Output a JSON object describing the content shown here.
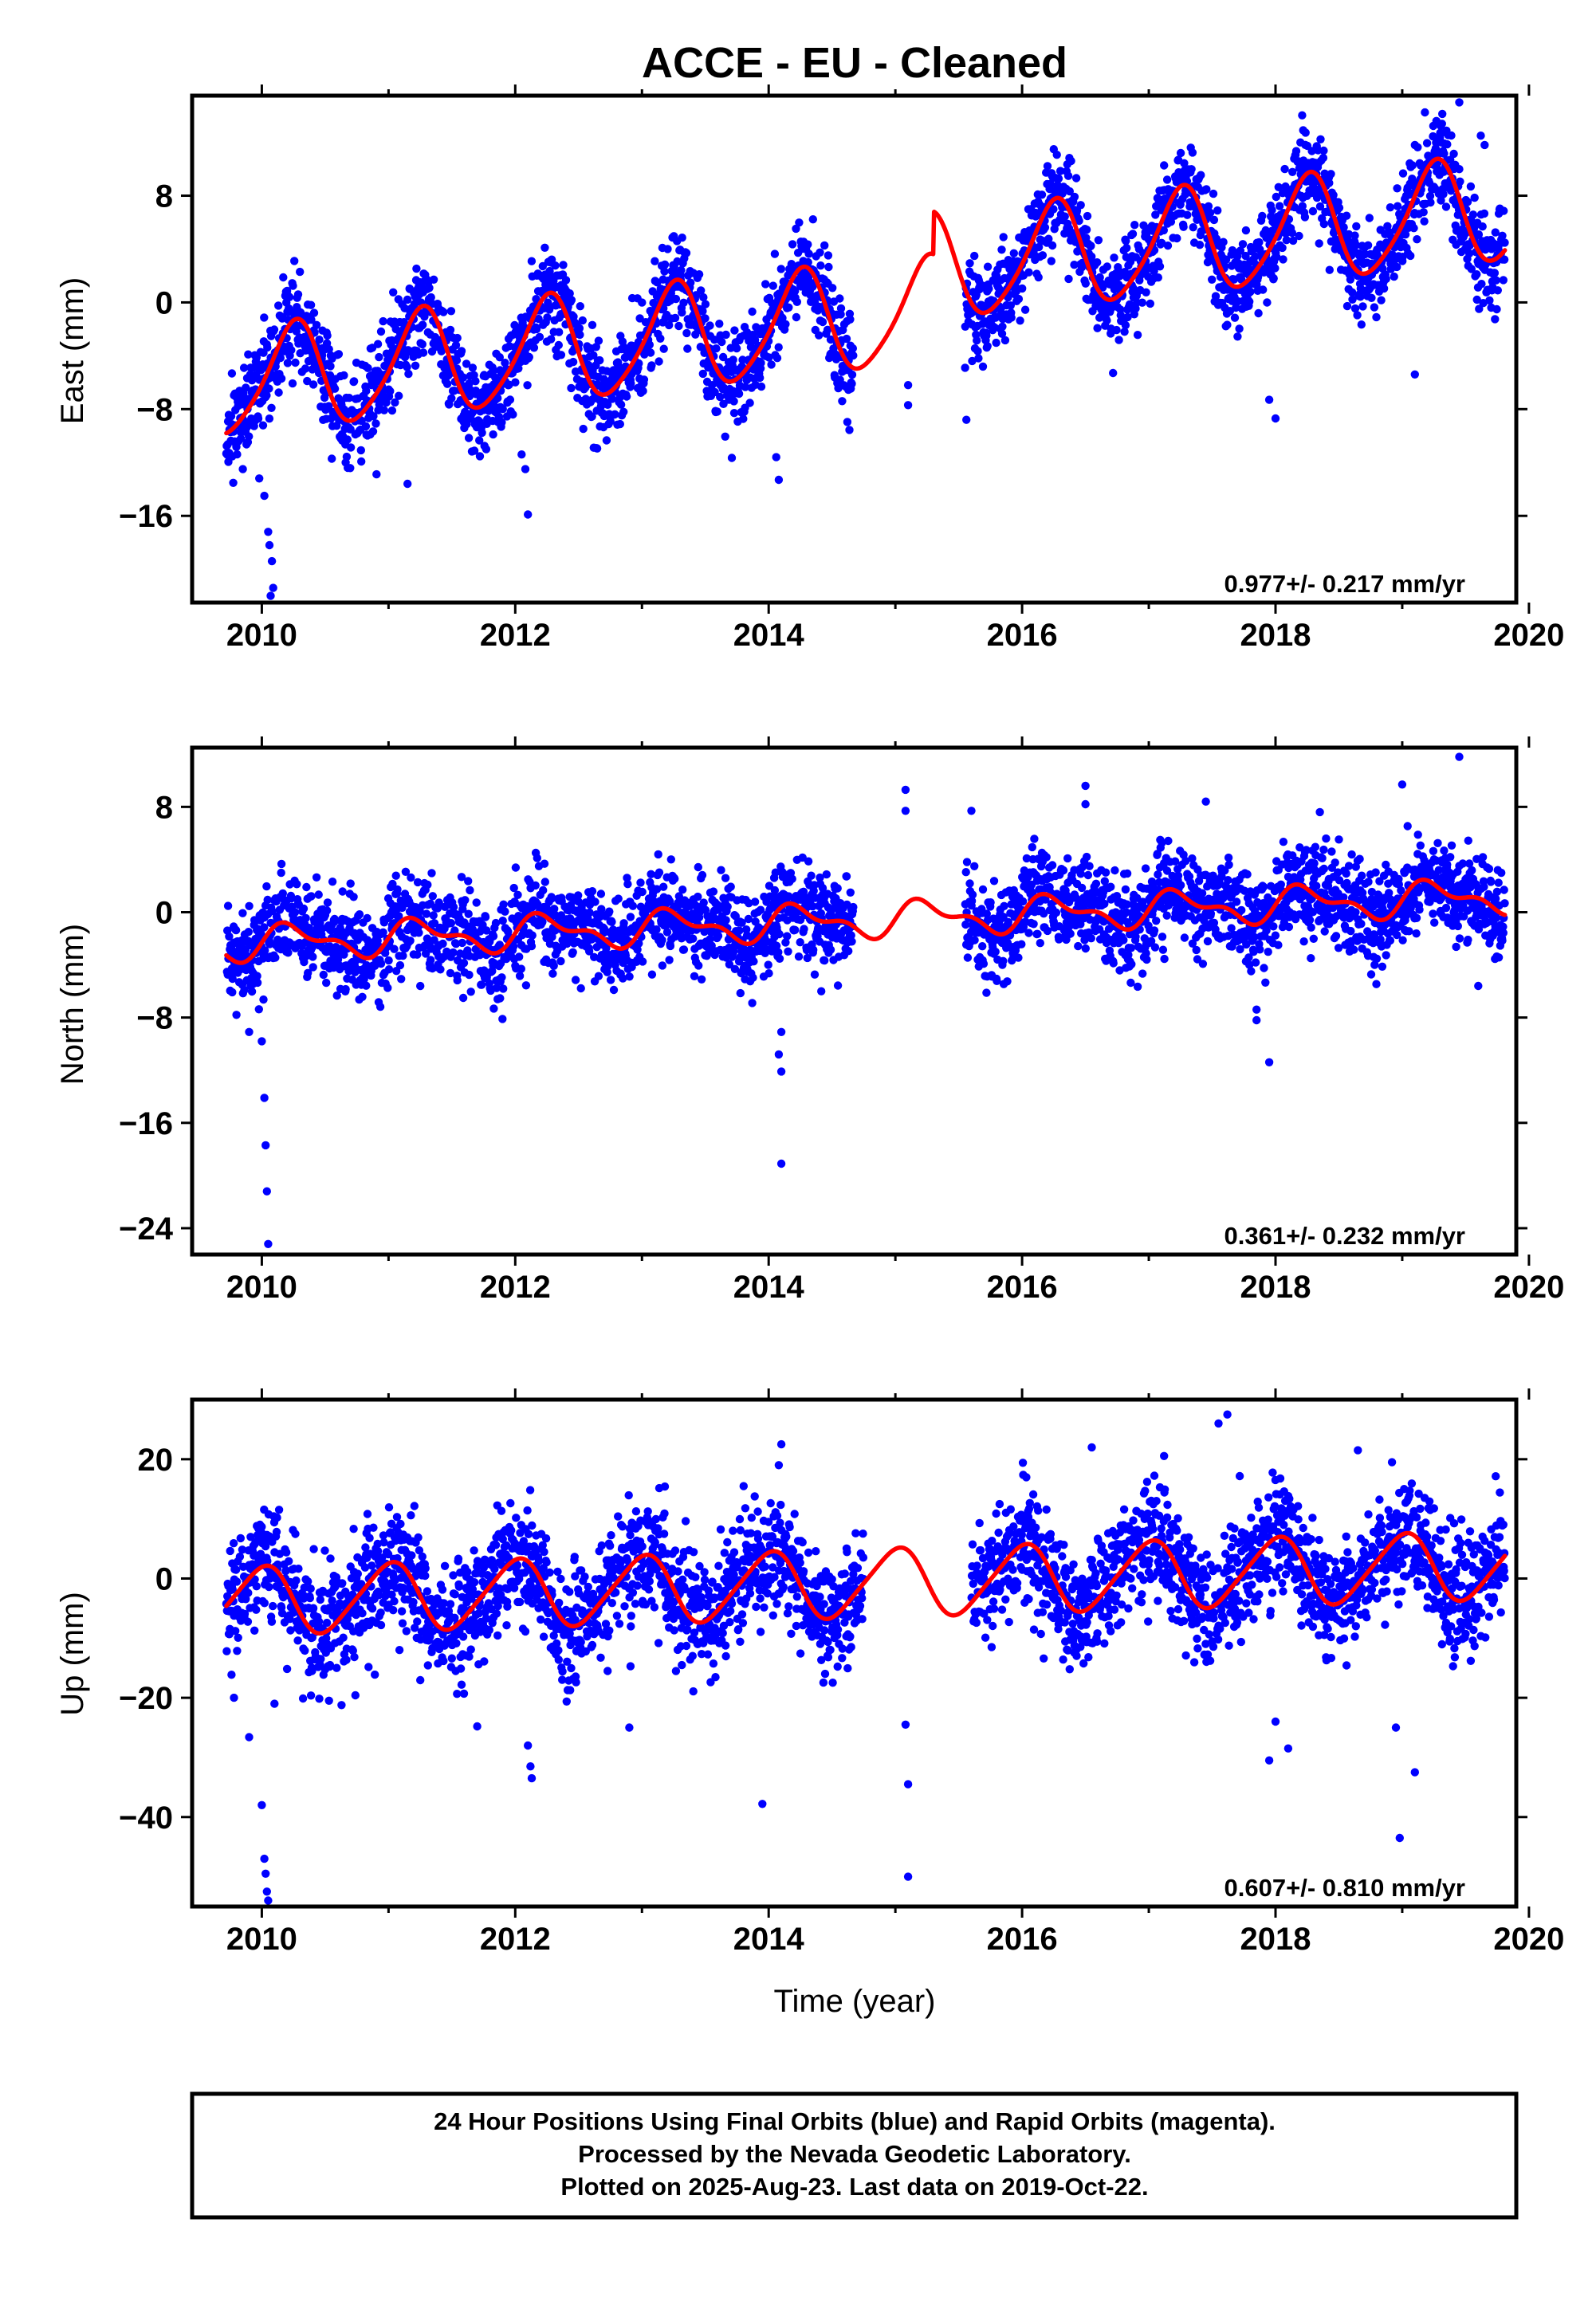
{
  "title": "ACCE  - EU - Cleaned",
  "chart_data": [
    {
      "type": "scatter",
      "name": "east",
      "ylabel": "East (mm)",
      "xlabel": "",
      "xlim": [
        2009.45,
        2019.9
      ],
      "ylim": [
        -22.5,
        15.5
      ],
      "xticks": [
        2010,
        2012,
        2014,
        2016,
        2018,
        2020
      ],
      "xtick_labels": [
        "2010",
        "2012",
        "2014",
        "2016",
        "2018",
        "2020"
      ],
      "yticks": [
        -16,
        -8,
        0,
        8
      ],
      "ytick_labels": [
        "−16",
        "−8",
        "0",
        "8"
      ],
      "rate": "0.977+/- 0.217 mm/yr",
      "data_span": [
        2009.72,
        2019.81
      ],
      "gap": [
        2014.67,
        2015.55
      ],
      "noise": 1.75,
      "seed": 11,
      "model": {
        "t0": 2014.75,
        "offset": -1.2,
        "trend": 0.977,
        "annual_amp": 3.9,
        "annual_phase": 0.0,
        "semi_amp": 0.6,
        "semi_phase": 0.2,
        "offsets": [
          {
            "t": 2015.3,
            "dy": 3.2
          }
        ]
      },
      "outliers": [
        {
          "x": 2009.85,
          "y": -12.5
        },
        {
          "x": 2009.98,
          "y": -13.2
        },
        {
          "x": 2010.02,
          "y": -14.5
        },
        {
          "x": 2010.05,
          "y": -17.2
        },
        {
          "x": 2010.06,
          "y": -18.2
        },
        {
          "x": 2010.08,
          "y": -19.4
        },
        {
          "x": 2010.07,
          "y": -22.0
        },
        {
          "x": 2010.09,
          "y": -21.4
        },
        {
          "x": 2011.15,
          "y": -13.6
        },
        {
          "x": 2012.1,
          "y": -15.9
        },
        {
          "x": 2012.08,
          "y": -12.5
        },
        {
          "x": 2012.05,
          "y": -11.4
        },
        {
          "x": 2014.08,
          "y": -13.3
        },
        {
          "x": 2014.06,
          "y": -11.6
        },
        {
          "x": 2014.58,
          "y": -7.4
        },
        {
          "x": 2015.1,
          "y": -7.7
        },
        {
          "x": 2015.1,
          "y": -6.2
        },
        {
          "x": 2015.56,
          "y": -8.8
        },
        {
          "x": 2015.55,
          "y": -4.9
        },
        {
          "x": 2018.0,
          "y": -8.7
        },
        {
          "x": 2017.95,
          "y": -7.3
        },
        {
          "x": 2019.1,
          "y": -5.4
        },
        {
          "x": 2019.45,
          "y": 15.0
        },
        {
          "x": 2019.62,
          "y": 12.5
        },
        {
          "x": 2019.65,
          "y": 11.8
        }
      ]
    },
    {
      "type": "scatter",
      "name": "north",
      "ylabel": "North (mm)",
      "xlabel": "",
      "xlim": [
        2009.45,
        2019.9
      ],
      "ylim": [
        -26.0,
        12.5
      ],
      "xticks": [
        2010,
        2012,
        2014,
        2016,
        2018,
        2020
      ],
      "xtick_labels": [
        "2010",
        "2012",
        "2014",
        "2016",
        "2018",
        "2020"
      ],
      "yticks": [
        -24,
        -16,
        -8,
        0,
        8
      ],
      "ytick_labels": [
        "−24",
        "−16",
        "−8",
        "0",
        "8"
      ],
      "rate": "0.361+/- 0.232 mm/yr",
      "data_span": [
        2009.72,
        2019.81
      ],
      "gap": [
        2014.67,
        2015.55
      ],
      "noise": 1.75,
      "seed": 23,
      "model": {
        "t0": 2014.75,
        "offset": -0.6,
        "trend": 0.361,
        "annual_amp": 1.1,
        "annual_phase": 0.0,
        "semi_amp": 0.6,
        "semi_phase": 0.0,
        "offsets": []
      },
      "outliers": [
        {
          "x": 2009.8,
          "y": -7.8
        },
        {
          "x": 2009.9,
          "y": -9.1
        },
        {
          "x": 2010.0,
          "y": -9.8
        },
        {
          "x": 2010.02,
          "y": -14.1
        },
        {
          "x": 2010.03,
          "y": -17.7
        },
        {
          "x": 2010.04,
          "y": -21.2
        },
        {
          "x": 2010.05,
          "y": -25.2
        },
        {
          "x": 2014.1,
          "y": -19.1
        },
        {
          "x": 2014.1,
          "y": -12.1
        },
        {
          "x": 2014.08,
          "y": -10.8
        },
        {
          "x": 2014.1,
          "y": -9.1
        },
        {
          "x": 2015.08,
          "y": 9.3
        },
        {
          "x": 2015.08,
          "y": 7.7
        },
        {
          "x": 2015.6,
          "y": 7.7
        },
        {
          "x": 2016.5,
          "y": 9.6
        },
        {
          "x": 2016.5,
          "y": 8.2
        },
        {
          "x": 2017.45,
          "y": 8.4
        },
        {
          "x": 2017.95,
          "y": -11.4
        },
        {
          "x": 2017.85,
          "y": -8.2
        },
        {
          "x": 2017.85,
          "y": -7.4
        },
        {
          "x": 2018.35,
          "y": 7.6
        },
        {
          "x": 2019.0,
          "y": 9.7
        },
        {
          "x": 2019.45,
          "y": 11.8
        },
        {
          "x": 2019.6,
          "y": -5.6
        }
      ]
    },
    {
      "type": "scatter",
      "name": "up",
      "ylabel": "Up (mm)",
      "xlabel": "Time (year)",
      "xlim": [
        2009.45,
        2019.9
      ],
      "ylim": [
        -55.0,
        30.0
      ],
      "xticks": [
        2010,
        2012,
        2014,
        2016,
        2018,
        2020
      ],
      "xtick_labels": [
        "2010",
        "2012",
        "2014",
        "2016",
        "2018",
        "2020"
      ],
      "yticks": [
        -40,
        -20,
        0,
        20
      ],
      "ytick_labels": [
        "−40",
        "−20",
        "0",
        "20"
      ],
      "rate": "0.607+/- 0.810 mm/yr",
      "data_span": [
        2009.72,
        2019.81
      ],
      "gap": [
        2014.75,
        2015.6
      ],
      "noise": 5.0,
      "seed": 37,
      "model": {
        "t0": 2014.75,
        "offset": -0.8,
        "trend": 0.607,
        "annual_amp": 5.6,
        "annual_phase": 0.75,
        "semi_amp": 0.8,
        "semi_phase": 0.5,
        "offsets": []
      },
      "outliers": [
        {
          "x": 2009.78,
          "y": -20.0
        },
        {
          "x": 2009.9,
          "y": -26.6
        },
        {
          "x": 2010.0,
          "y": -38.0
        },
        {
          "x": 2010.02,
          "y": -47.0
        },
        {
          "x": 2010.03,
          "y": -49.5
        },
        {
          "x": 2010.04,
          "y": -52.5
        },
        {
          "x": 2010.05,
          "y": -54.0
        },
        {
          "x": 2010.1,
          "y": -21.0
        },
        {
          "x": 2011.7,
          "y": -24.8
        },
        {
          "x": 2012.1,
          "y": -28.0
        },
        {
          "x": 2012.12,
          "y": -31.5
        },
        {
          "x": 2012.13,
          "y": -33.5
        },
        {
          "x": 2012.9,
          "y": -25.0
        },
        {
          "x": 2013.95,
          "y": -37.8
        },
        {
          "x": 2014.1,
          "y": 22.5
        },
        {
          "x": 2014.08,
          "y": 19.0
        },
        {
          "x": 2015.08,
          "y": -24.5
        },
        {
          "x": 2015.1,
          "y": -34.5
        },
        {
          "x": 2015.1,
          "y": -50.0
        },
        {
          "x": 2016.55,
          "y": 22.0
        },
        {
          "x": 2017.55,
          "y": 26.0
        },
        {
          "x": 2017.62,
          "y": 27.5
        },
        {
          "x": 2017.95,
          "y": -30.5
        },
        {
          "x": 2018.0,
          "y": -24.0
        },
        {
          "x": 2018.1,
          "y": -28.5
        },
        {
          "x": 2018.65,
          "y": 21.5
        },
        {
          "x": 2018.95,
          "y": -25.0
        },
        {
          "x": 2018.98,
          "y": -43.5
        },
        {
          "x": 2019.1,
          "y": -32.5
        }
      ]
    }
  ],
  "footer": {
    "line1": "24 Hour Positions Using Final Orbits (blue) and Rapid Orbits (magenta).",
    "line2": "Processed by the Nevada Geodetic Laboratory.",
    "line3": "Plotted on 2025-Aug-23. Last data on 2019-Oct-22."
  },
  "colors": {
    "points": "#0000ff",
    "model": "#ff0000",
    "frame": "#000000"
  }
}
